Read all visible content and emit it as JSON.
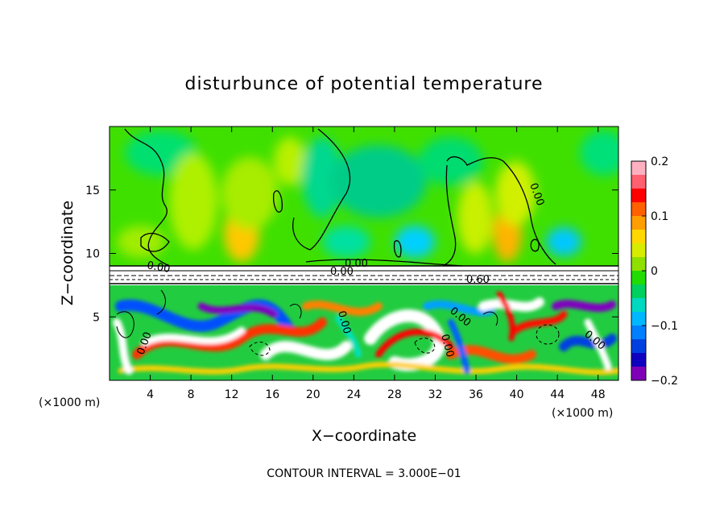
{
  "chart_data": {
    "type": "heatmap",
    "title": "disturbunce of potential temperature",
    "xlabel": "X−coordinate",
    "ylabel": "Z−coordinate",
    "x_unit": "(×1000 m)",
    "z_unit": "(×1000 m)",
    "xlim": [
      0,
      50
    ],
    "zlim": [
      0,
      20
    ],
    "x_ticks": [
      4,
      8,
      12,
      16,
      20,
      24,
      28,
      32,
      36,
      40,
      44,
      48
    ],
    "x_tick_labels": [
      "4",
      "8",
      "12",
      "16",
      "20",
      "24",
      "28",
      "32",
      "36",
      "40",
      "44",
      "48"
    ],
    "z_ticks": [
      5,
      10,
      15
    ],
    "z_tick_labels": [
      "5",
      "10",
      "15"
    ],
    "colorbar": {
      "range": [
        -0.2,
        0.2
      ],
      "ticks": [
        0.2,
        0.1,
        0,
        -0.1,
        -0.2
      ],
      "tick_labels": [
        "0.2",
        "0.1",
        "0",
        "−0.1",
        "−0.2"
      ],
      "colors": [
        "#ffb0c0",
        "#ff6070",
        "#ff0000",
        "#ff6000",
        "#ff9e00",
        "#ffd800",
        "#d8ec00",
        "#8fe000",
        "#22dc00",
        "#00d060",
        "#00d8c0",
        "#00b8ff",
        "#0080ff",
        "#0040e0",
        "#1000c0",
        "#8000b8"
      ]
    },
    "contour_labels": [
      "0.00",
      "0.00",
      "0.00",
      "0.60",
      "0.00",
      "0.00",
      "0.00",
      "0.00",
      "0.00",
      "0.00"
    ],
    "footnote": "CONTOUR INTERVAL = 3.000E−01"
  }
}
